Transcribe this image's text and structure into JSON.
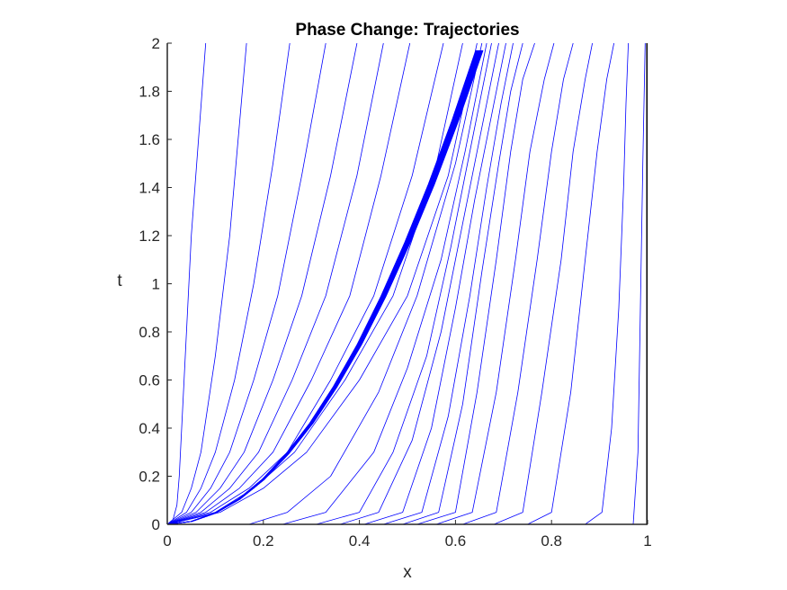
{
  "chart_data": {
    "type": "line",
    "title": "Phase Change: Trajectories",
    "xlabel": "x",
    "ylabel": "t",
    "xlim": [
      0,
      1
    ],
    "ylim": [
      0,
      2
    ],
    "x_ticks": [
      "0",
      "0.2",
      "0.4",
      "0.6",
      "0.8",
      "1"
    ],
    "y_ticks": [
      "0",
      "0.2",
      "0.4",
      "0.6",
      "0.8",
      "1",
      "1.2",
      "1.4",
      "1.6",
      "1.8",
      "2"
    ],
    "grid": false,
    "line_color": "#0000ff",
    "boundary_color": "#000000",
    "series": [
      {
        "x": [
          0,
          0.012,
          0.02,
          0.025,
          0.05,
          0.08
        ],
        "t": [
          0,
          0.02,
          0.08,
          0.2,
          1.2,
          2
        ]
      },
      {
        "x": [
          0,
          0.03,
          0.05,
          0.07,
          0.1,
          0.13,
          0.165
        ],
        "t": [
          0,
          0.05,
          0.15,
          0.3,
          0.7,
          1.2,
          2
        ]
      },
      {
        "x": [
          0,
          0.04,
          0.07,
          0.1,
          0.14,
          0.18,
          0.22,
          0.255
        ],
        "t": [
          0,
          0.05,
          0.15,
          0.3,
          0.6,
          1.0,
          1.5,
          2
        ]
      },
      {
        "x": [
          0,
          0.05,
          0.09,
          0.13,
          0.18,
          0.23,
          0.28,
          0.33
        ],
        "t": [
          0,
          0.05,
          0.15,
          0.3,
          0.6,
          0.95,
          1.45,
          2
        ]
      },
      {
        "x": [
          0,
          0.06,
          0.11,
          0.16,
          0.22,
          0.28,
          0.34,
          0.395
        ],
        "t": [
          0,
          0.05,
          0.15,
          0.3,
          0.6,
          0.95,
          1.45,
          2
        ]
      },
      {
        "x": [
          0,
          0.07,
          0.13,
          0.19,
          0.26,
          0.33,
          0.395,
          0.45
        ],
        "t": [
          0,
          0.05,
          0.15,
          0.3,
          0.6,
          0.95,
          1.45,
          2
        ]
      },
      {
        "x": [
          0,
          0.08,
          0.15,
          0.22,
          0.3,
          0.38,
          0.445,
          0.505
        ],
        "t": [
          0,
          0.05,
          0.15,
          0.3,
          0.6,
          0.95,
          1.45,
          2
        ]
      },
      {
        "x": [
          0,
          0.09,
          0.17,
          0.25,
          0.34,
          0.43,
          0.51,
          0.575
        ],
        "t": [
          0,
          0.05,
          0.15,
          0.3,
          0.6,
          0.95,
          1.45,
          2
        ]
      },
      {
        "x": [
          0,
          0.1,
          0.18,
          0.265,
          0.37,
          0.47,
          0.555,
          0.615
        ],
        "t": [
          0,
          0.05,
          0.15,
          0.3,
          0.6,
          0.95,
          1.45,
          2
        ]
      },
      {
        "x": [
          0,
          0.11,
          0.2,
          0.29,
          0.4,
          0.5,
          0.585,
          0.645
        ],
        "t": [
          0,
          0.05,
          0.15,
          0.3,
          0.6,
          0.95,
          1.45,
          2
        ]
      },
      {
        "x": [
          0.17,
          0.25,
          0.34,
          0.44,
          0.52,
          0.6,
          0.655
        ],
        "t": [
          0,
          0.05,
          0.2,
          0.55,
          0.95,
          1.5,
          2
        ]
      },
      {
        "x": [
          0.24,
          0.33,
          0.43,
          0.5,
          0.57,
          0.62,
          0.665
        ],
        "t": [
          0,
          0.05,
          0.3,
          0.65,
          1.1,
          1.55,
          2
        ]
      },
      {
        "x": [
          0.31,
          0.4,
          0.47,
          0.54,
          0.59,
          0.635,
          0.675
        ],
        "t": [
          0,
          0.05,
          0.3,
          0.7,
          1.15,
          1.6,
          2
        ]
      },
      {
        "x": [
          0.36,
          0.44,
          0.51,
          0.57,
          0.615,
          0.655,
          0.69
        ],
        "t": [
          0,
          0.05,
          0.35,
          0.8,
          1.25,
          1.65,
          2
        ]
      },
      {
        "x": [
          0.41,
          0.49,
          0.55,
          0.6,
          0.64,
          0.675,
          0.705
        ],
        "t": [
          0,
          0.05,
          0.4,
          0.9,
          1.35,
          1.7,
          2
        ]
      },
      {
        "x": [
          0.45,
          0.53,
          0.585,
          0.63,
          0.665,
          0.695,
          0.72
        ],
        "t": [
          0,
          0.05,
          0.45,
          0.95,
          1.4,
          1.75,
          2
        ]
      },
      {
        "x": [
          0.49,
          0.565,
          0.615,
          0.655,
          0.69,
          0.715,
          0.74
        ],
        "t": [
          0,
          0.05,
          0.5,
          1.05,
          1.5,
          1.8,
          2
        ]
      },
      {
        "x": [
          0.52,
          0.6,
          0.645,
          0.685,
          0.715,
          0.74,
          0.765
        ],
        "t": [
          0,
          0.05,
          0.55,
          1.1,
          1.55,
          1.85,
          2
        ]
      },
      {
        "x": [
          0.56,
          0.635,
          0.685,
          0.725,
          0.755,
          0.785,
          0.805
        ],
        "t": [
          0,
          0.05,
          0.55,
          1.1,
          1.55,
          1.85,
          2
        ]
      },
      {
        "x": [
          0.615,
          0.685,
          0.73,
          0.77,
          0.8,
          0.825,
          0.845
        ],
        "t": [
          0,
          0.05,
          0.55,
          1.1,
          1.55,
          1.85,
          2
        ]
      },
      {
        "x": [
          0.68,
          0.74,
          0.78,
          0.82,
          0.845,
          0.87,
          0.885
        ],
        "t": [
          0,
          0.05,
          0.55,
          1.1,
          1.55,
          1.85,
          2
        ]
      },
      {
        "x": [
          0.75,
          0.8,
          0.84,
          0.87,
          0.895,
          0.915,
          0.93
        ],
        "t": [
          0,
          0.05,
          0.55,
          1.1,
          1.55,
          1.85,
          2
        ]
      },
      {
        "x": [
          0.87,
          0.905,
          0.925,
          0.94,
          0.95,
          0.955,
          0.96
        ],
        "t": [
          0,
          0.05,
          0.4,
          0.9,
          1.4,
          1.75,
          2
        ]
      },
      {
        "x": [
          0.97,
          0.98,
          0.985,
          0.99,
          0.995
        ],
        "t": [
          0,
          0.3,
          0.9,
          1.5,
          2
        ]
      }
    ],
    "phase_front": {
      "x": [
        0,
        0.05,
        0.1,
        0.15,
        0.2,
        0.25,
        0.3,
        0.35,
        0.4,
        0.45,
        0.5,
        0.55,
        0.6,
        0.65
      ],
      "t": [
        0,
        0.012,
        0.047,
        0.105,
        0.187,
        0.293,
        0.42,
        0.573,
        0.747,
        0.947,
        1.17,
        1.413,
        1.68,
        1.97
      ],
      "copies": 30,
      "spread": 0.012
    },
    "boundary": {
      "x": 1,
      "t": [
        0,
        2
      ]
    }
  }
}
